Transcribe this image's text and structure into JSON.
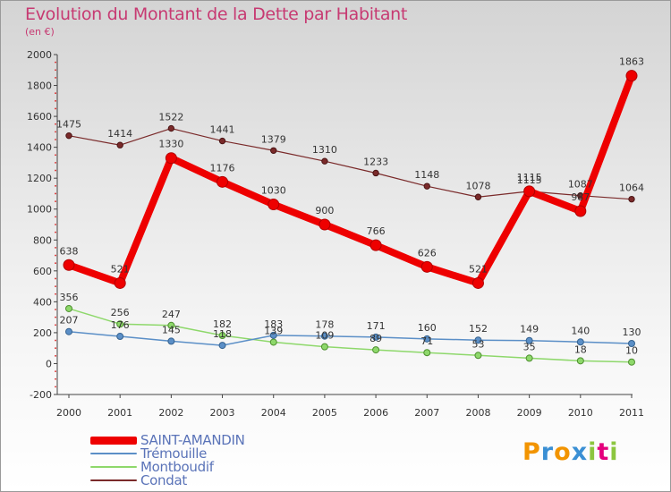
{
  "chart_data": {
    "type": "line",
    "title": "Evolution du Montant de la Dette par Habitant",
    "subtitle": "(en €)",
    "categories": [
      "2000",
      "2001",
      "2002",
      "2003",
      "2004",
      "2005",
      "2006",
      "2007",
      "2008",
      "2009",
      "2010",
      "2011"
    ],
    "ylim": [
      -200,
      2000
    ],
    "yticks": [
      -200,
      0,
      200,
      400,
      600,
      800,
      1000,
      1200,
      1400,
      1600,
      1800,
      2000
    ],
    "grid": false,
    "legend_position": "bottom-left",
    "series": [
      {
        "name": "SAINT-AMANDIN",
        "color": "#ee0000",
        "values": [
          638,
          521,
          1330,
          1176,
          1030,
          900,
          766,
          626,
          521,
          1115,
          987,
          1863
        ]
      },
      {
        "name": "Trémouille",
        "color": "#5b8fc7",
        "values": [
          207,
          176,
          145,
          118,
          183,
          178,
          171,
          160,
          152,
          149,
          140,
          130
        ]
      },
      {
        "name": "Montboudif",
        "color": "#8ed86b",
        "values": [
          356,
          256,
          247,
          182,
          139,
          109,
          89,
          71,
          53,
          35,
          18,
          10
        ]
      },
      {
        "name": "Condat",
        "color": "#7a2a2a",
        "values": [
          1475,
          1414,
          1522,
          1441,
          1379,
          1310,
          1233,
          1148,
          1078,
          1115,
          1087,
          1064
        ]
      }
    ]
  },
  "logo": {
    "letters": [
      "P",
      "r",
      "o",
      "x",
      "i",
      "t",
      "i"
    ],
    "colors": [
      "#f29400",
      "#3a8fd4",
      "#f29400",
      "#3a8fd4",
      "#8cc63f",
      "#e4007c",
      "#8cc63f"
    ]
  }
}
